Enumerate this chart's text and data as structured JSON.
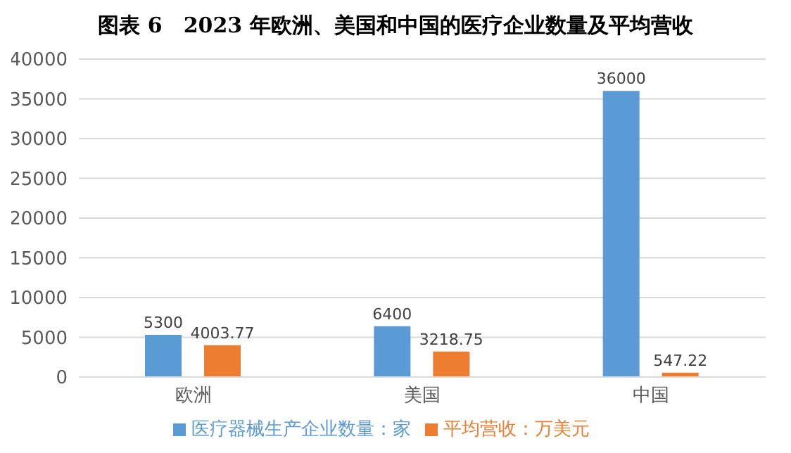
{
  "chart_data": {
    "type": "bar",
    "title": "图表 6　2023 年欧洲、美国和中国的医疗企业数量及平均营收",
    "categories": [
      "欧洲",
      "美国",
      "中国"
    ],
    "series": [
      {
        "name": "医疗器械生产企业数量：家",
        "color": "#5b9bd5",
        "values": [
          5300,
          6400,
          36000
        ]
      },
      {
        "name": "平均营收：万美元",
        "color": "#ed7d31",
        "values": [
          4003.77,
          3218.75,
          547.22
        ]
      }
    ],
    "ylim": [
      0,
      40000
    ],
    "yticks": [
      0,
      5000,
      10000,
      15000,
      20000,
      25000,
      30000,
      35000,
      40000
    ],
    "grid": "y",
    "legend": "bottom",
    "data_labels": true
  }
}
